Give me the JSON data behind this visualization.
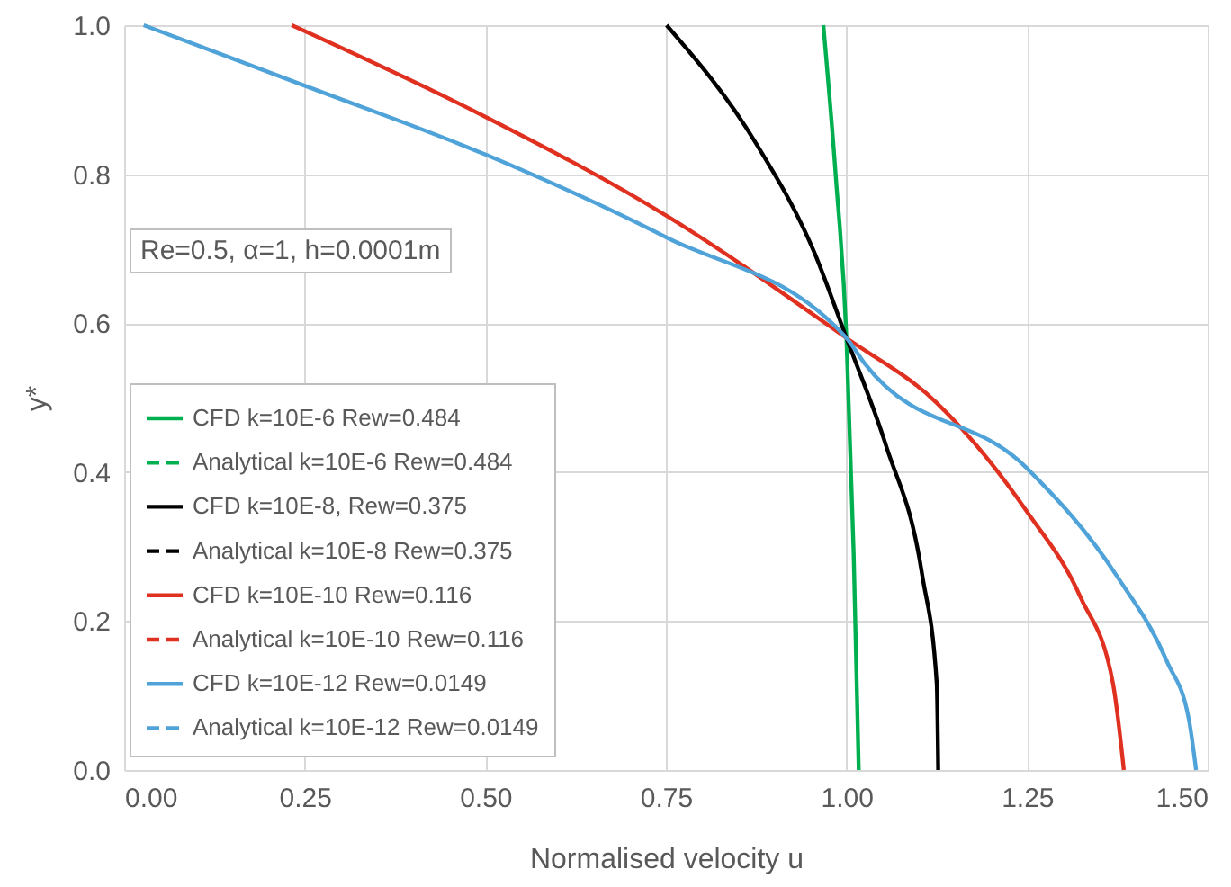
{
  "chart_data": {
    "type": "line",
    "xlabel": "Normalised velocity u",
    "ylabel": "y*",
    "xlim": [
      0,
      1.5
    ],
    "ylim": [
      0,
      1
    ],
    "xticks": [
      {
        "value": 0,
        "label": "0.00"
      },
      {
        "value": 0.25,
        "label": "0.25"
      },
      {
        "value": 0.5,
        "label": "0.50"
      },
      {
        "value": 0.75,
        "label": "0.75"
      },
      {
        "value": 1,
        "label": "1.00"
      },
      {
        "value": 1.25,
        "label": "1.25"
      },
      {
        "value": 1.5,
        "label": "1.50"
      }
    ],
    "yticks": [
      {
        "value": 0,
        "label": "0.0"
      },
      {
        "value": 0.2,
        "label": "0.2"
      },
      {
        "value": 0.4,
        "label": "0.4"
      },
      {
        "value": 0.6,
        "label": "0.6"
      },
      {
        "value": 0.8,
        "label": "0.8"
      },
      {
        "value": 1,
        "label": "1.0"
      }
    ],
    "grid": true,
    "legend": "left",
    "marker": "none",
    "annotations": [
      "Re=0.5, α=1, h=0.0001m"
    ],
    "series": [
      {
        "name": "CFD k=10E-6 Rew=0.484",
        "color": "#00b050",
        "line_style": "solid",
        "x": [
          0.968,
          0.985,
          1.0,
          1.01,
          1.017
        ],
        "values": [
          1,
          0.8,
          0.58,
          0.29,
          0
        ]
      },
      {
        "name": "Analytical k=10E-6 Rew=0.484",
        "color": "#00b050",
        "line_style": "dashed",
        "x": [
          null
        ],
        "values": [
          null
        ]
      },
      {
        "name": "CFD k=10E-8, Rew=0.375",
        "color": "#000000",
        "line_style": "solid",
        "x": [
          0.751,
          0.875,
          0.955,
          1.0,
          1.055,
          1.105,
          1.125,
          1.127
        ],
        "values": [
          1,
          0.841,
          0.696,
          0.58,
          0.435,
          0.261,
          0.116,
          0
        ]
      },
      {
        "name": "Analytical k=10E-8 Rew=0.375",
        "color": "#000000",
        "line_style": "dashed",
        "x": [
          null
        ],
        "values": [
          null
        ]
      },
      {
        "name": "CFD k=10E-10 Rew=0.116",
        "color": "#e03020",
        "line_style": "solid",
        "x": [
          0.232,
          0.496,
          0.751,
          1.0,
          1.125,
          1.249,
          1.324,
          1.369,
          1.384
        ],
        "values": [
          1,
          0.879,
          0.744,
          0.58,
          0.493,
          0.348,
          0.232,
          0.116,
          0
        ]
      },
      {
        "name": "Analytical k=10E-10 Rew=0.116",
        "color": "#e03020",
        "line_style": "dashed",
        "x": [
          null
        ],
        "values": [
          null
        ]
      },
      {
        "name": "CFD k=10E-12 Rew=0.0149",
        "color": "#4fa3d9",
        "line_style": "solid",
        "x": [
          0.027,
          0.252,
          0.501,
          0.751,
          1.0,
          1.025,
          1.249,
          1.374,
          1.444,
          1.474,
          1.484
        ],
        "values": [
          1,
          0.918,
          0.826,
          0.715,
          0.58,
          0.546,
          0.406,
          0.261,
          0.145,
          0.068,
          0
        ]
      },
      {
        "name": "Analytical k=10E-12 Rew=0.0149",
        "color": "#4fa3d9",
        "line_style": "dashed",
        "x": [
          null
        ],
        "values": [
          null
        ]
      }
    ]
  }
}
